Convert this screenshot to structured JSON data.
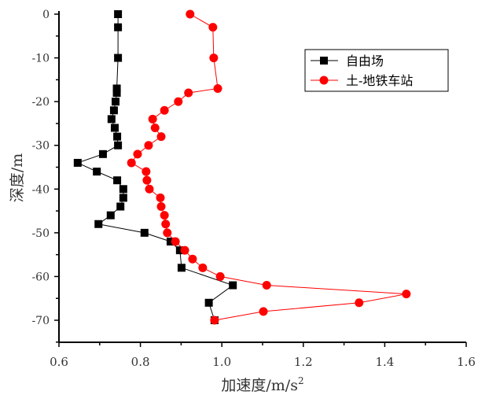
{
  "chart_data": {
    "type": "line",
    "title": "",
    "xlabel": "加速度/m/s",
    "xlabel_sup": "2",
    "ylabel": "深度/m",
    "xlim": [
      0.6,
      1.6
    ],
    "ylim": [
      -75,
      0
    ],
    "xticks": [
      "0.6",
      "0.8",
      "1.0",
      "1.2",
      "1.4",
      "1.6"
    ],
    "xtick_values": [
      0.6,
      0.8,
      1.0,
      1.2,
      1.4,
      1.6
    ],
    "yticks": [
      "0",
      "-10",
      "-20",
      "-30",
      "-40",
      "-50",
      "-60",
      "-70"
    ],
    "ytick_values": [
      0,
      -10,
      -20,
      -30,
      -40,
      -50,
      -60,
      -70
    ],
    "grid": false,
    "legend_position": "top-right",
    "series": [
      {
        "name": "自由场",
        "color": "#000000",
        "marker": "square",
        "x": [
          0.745,
          0.745,
          0.745,
          0.742,
          0.742,
          0.739,
          0.735,
          0.729,
          0.737,
          0.743,
          0.745,
          0.708,
          0.646,
          0.693,
          0.743,
          0.758,
          0.758,
          0.751,
          0.727,
          0.697,
          0.81,
          0.874,
          0.897,
          0.901,
          1.027,
          0.968,
          0.982
        ],
        "y": [
          0,
          -3,
          -10,
          -17,
          -18,
          -20,
          -22,
          -24,
          -26,
          -28,
          -30,
          -32,
          -34,
          -36,
          -38,
          -40,
          -42,
          -44,
          -46,
          -48,
          -50,
          -52,
          -54,
          -58,
          -62,
          -66,
          -70
        ]
      },
      {
        "name": "土-地铁车站",
        "color": "#ff0000",
        "marker": "circle",
        "x": [
          0.922,
          0.978,
          0.98,
          0.99,
          0.918,
          0.893,
          0.859,
          0.83,
          0.836,
          0.851,
          0.82,
          0.793,
          0.778,
          0.814,
          0.816,
          0.822,
          0.849,
          0.851,
          0.859,
          0.862,
          0.866,
          0.886,
          0.909,
          0.928,
          0.953,
          0.996,
          1.11,
          1.453,
          1.337,
          1.102,
          0.982
        ],
        "y": [
          0,
          -3,
          -10,
          -17,
          -18,
          -20,
          -22,
          -24,
          -26,
          -28,
          -30,
          -32,
          -34,
          -36,
          -38,
          -40,
          -42,
          -44,
          -46,
          -48,
          -50,
          -52,
          -54,
          -56,
          -58,
          -60,
          -62,
          -64,
          -66,
          -68,
          -70
        ]
      }
    ]
  }
}
